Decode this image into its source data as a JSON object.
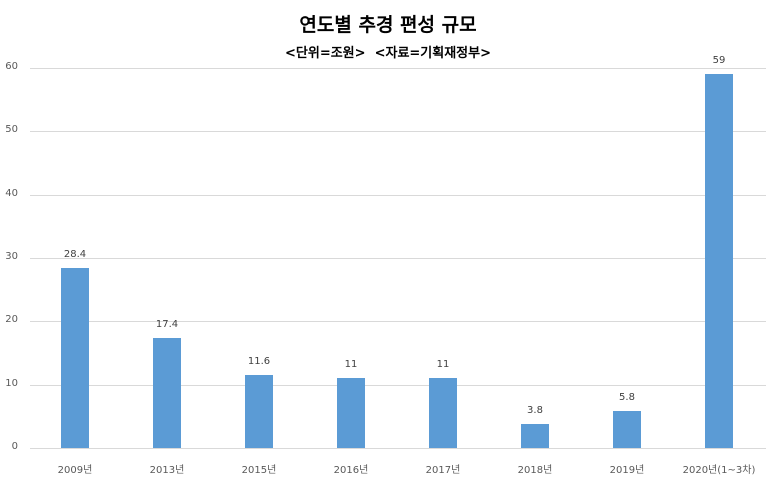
{
  "chart_data": {
    "type": "bar",
    "title": "연도별 추경 편성 규모",
    "subtitle": "<단위=조원>  <자료=기획재정부>",
    "xlabel": "",
    "ylabel": "",
    "ylim": [
      0,
      60
    ],
    "yticks": [
      0,
      10,
      20,
      30,
      40,
      50,
      60
    ],
    "grid": true,
    "legend": null,
    "categories": [
      "2009년",
      "2013년",
      "2015년",
      "2016년",
      "2017년",
      "2018년",
      "2019년",
      "2020년(1~3차)"
    ],
    "values": [
      28.4,
      17.4,
      11.6,
      11,
      11,
      3.8,
      5.8,
      59
    ],
    "data_labels": [
      "28.4",
      "17.4",
      "11.6",
      "11",
      "11",
      "3.8",
      "5.8",
      "59"
    ],
    "bar_color": "#5b9bd5"
  }
}
